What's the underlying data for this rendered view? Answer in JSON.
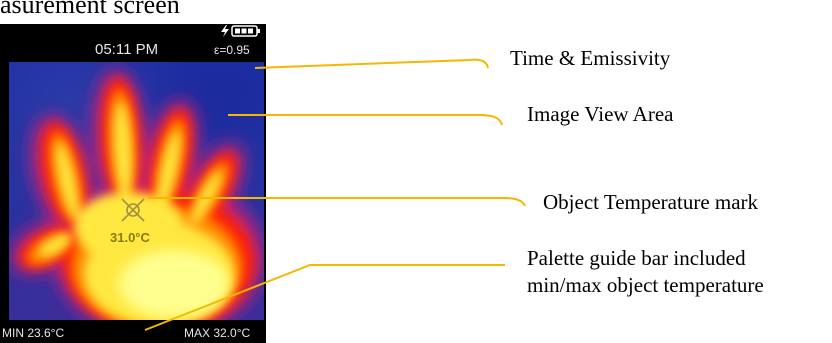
{
  "page": {
    "heading": "asurement screen"
  },
  "device": {
    "time": "05:11 PM",
    "emissivity": "ε=0.95",
    "icons": [
      "charging-bolt-icon",
      "battery-icon"
    ],
    "min_temp": "MIN 23.6°C",
    "max_temp": "MAX 32.0°C",
    "object_temp": "31.0°C",
    "target_icon": "crosshair-target-icon"
  },
  "callouts": {
    "time_emissivity": "Time & Emissivity",
    "image_view": "Image View Area",
    "object_mark": "Object Temperature mark",
    "palette_bar_line1": "Palette guide bar included",
    "palette_bar_line2": "min/max object temperature"
  },
  "colors": {
    "callout_line": "#f5b800",
    "thermal_cold": "#1c2da2",
    "thermal_mid": "#ff2a00",
    "thermal_hot": "#ffff40"
  }
}
